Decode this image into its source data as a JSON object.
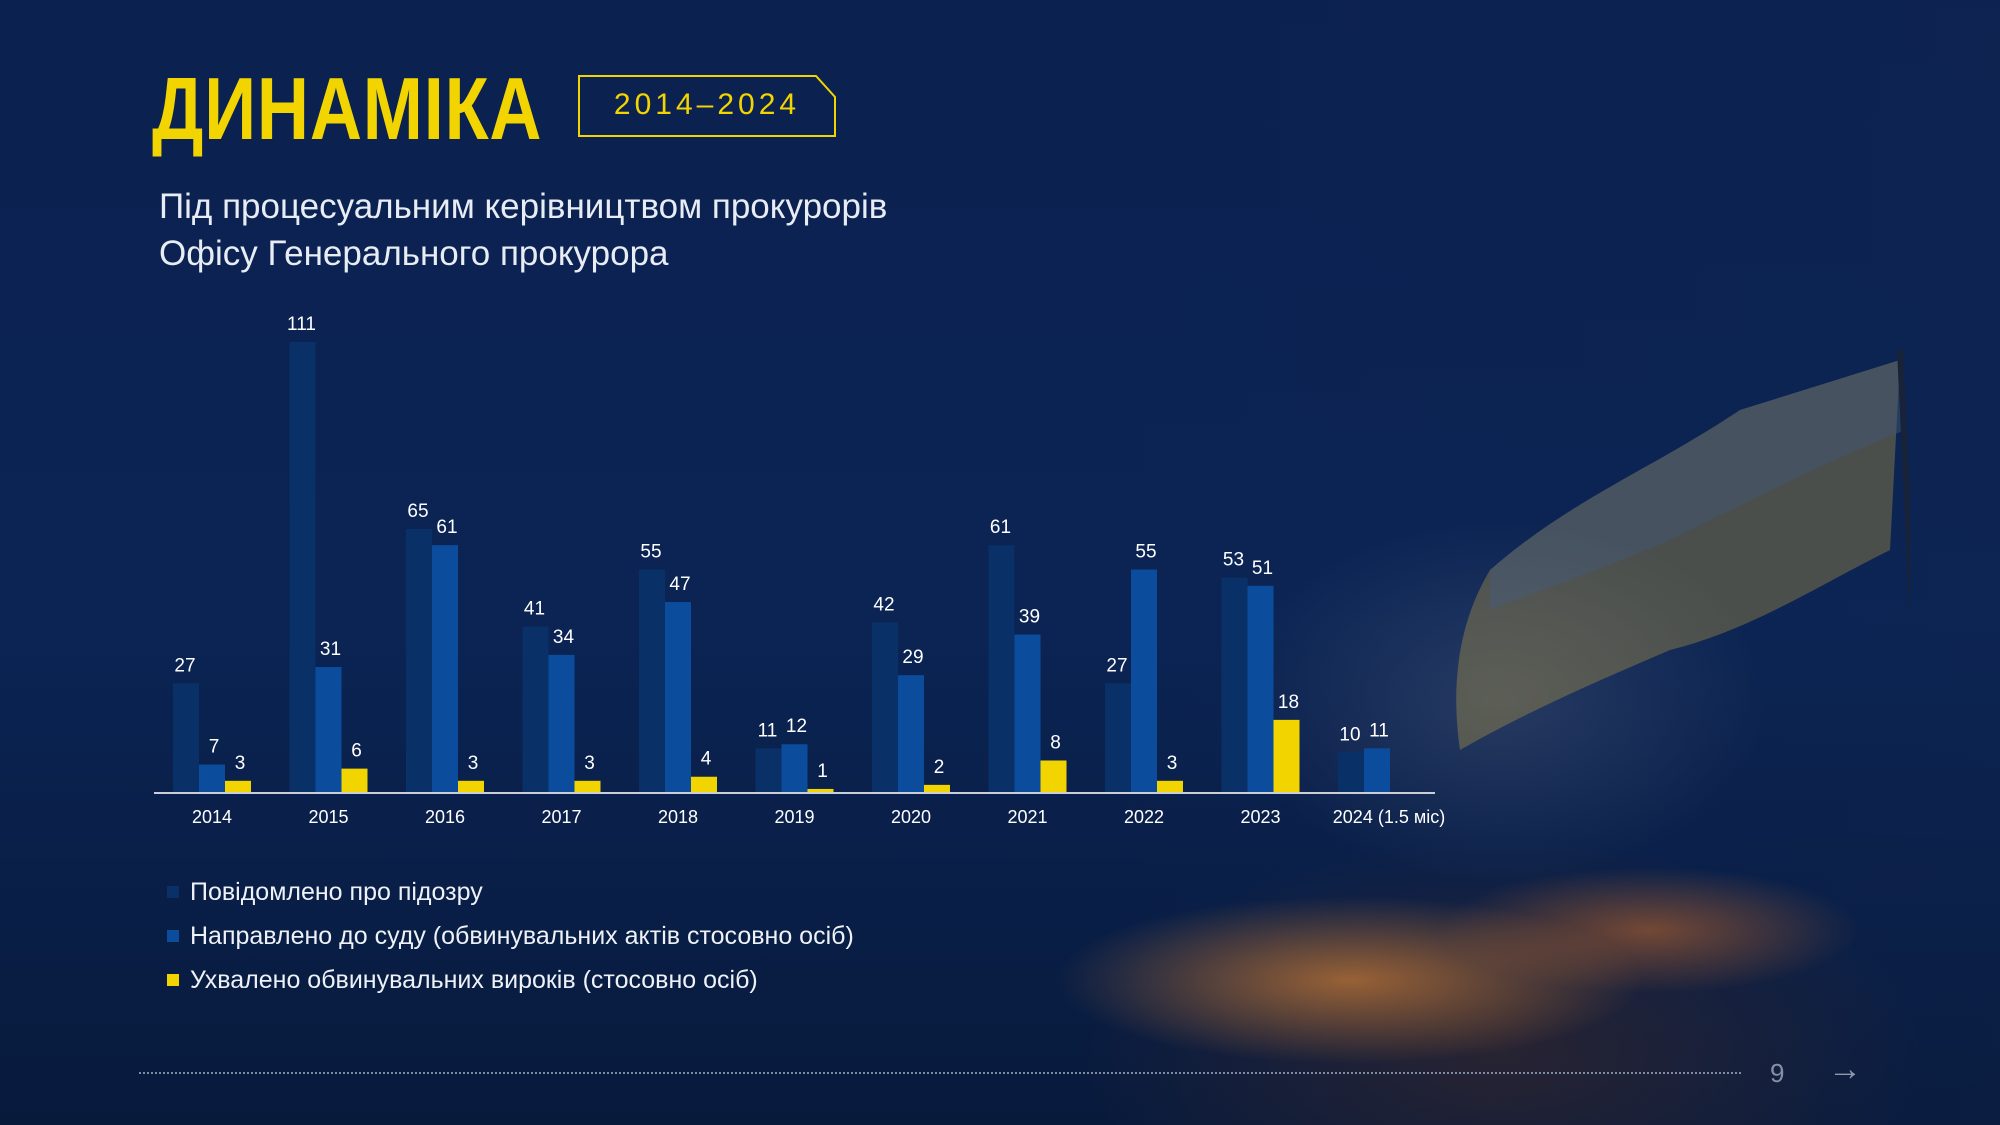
{
  "header": {
    "title": "ДИНАМІКА",
    "period_badge": "2014–2024",
    "subtitle_line1": "Під процесуальним керівництвом прокурорів",
    "subtitle_line2": "Офісу Генерального прокурора"
  },
  "colors": {
    "suspicion": "#0a3068",
    "court": "#0b4c9c",
    "verdicts": "#f2d500",
    "accent": "#f2d500"
  },
  "chart_data": {
    "type": "bar",
    "categories": [
      "2014",
      "2015",
      "2016",
      "2017",
      "2018",
      "2019",
      "2020",
      "2021",
      "2022",
      "2023",
      "2024 (1.5 міс)"
    ],
    "series": [
      {
        "name": "Повідомлено про підозру",
        "values": [
          27,
          111,
          65,
          41,
          55,
          11,
          42,
          61,
          27,
          53,
          10
        ]
      },
      {
        "name": "Направлено до суду (обвинувальних актів стосовно осіб)",
        "values": [
          7,
          31,
          61,
          34,
          47,
          12,
          29,
          39,
          55,
          51,
          11
        ]
      },
      {
        "name": "Ухвалено обвинувальних вироків (стосовно осіб)",
        "values": [
          3,
          6,
          3,
          3,
          4,
          1,
          2,
          8,
          3,
          18,
          null
        ]
      }
    ],
    "ylim": [
      0,
      111
    ],
    "grid": false,
    "legend_position": "bottom-left"
  },
  "footer": {
    "page_number": "9",
    "next_icon": "arrow-right-icon"
  }
}
